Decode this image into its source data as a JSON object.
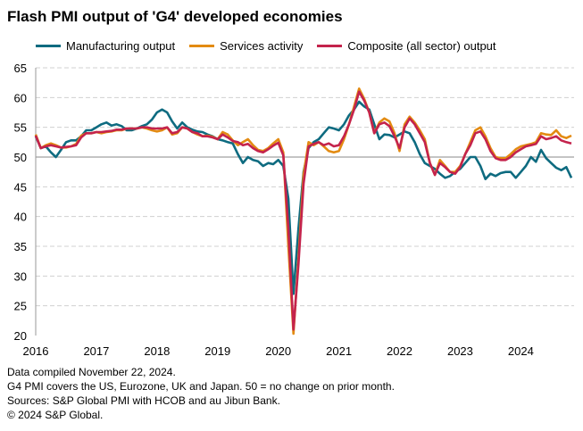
{
  "chart_data": {
    "type": "line",
    "title": "Flash PMI output of 'G4' developed economies",
    "xlabel": "",
    "ylabel": "",
    "ylim": [
      20,
      65
    ],
    "yticks": [
      20,
      25,
      30,
      35,
      40,
      45,
      50,
      55,
      60,
      65
    ],
    "xticks": [
      "2016",
      "2017",
      "2018",
      "2019",
      "2020",
      "2021",
      "2022",
      "2023",
      "2024"
    ],
    "start": "2016-01",
    "end": "2024-11",
    "reference_line": 50,
    "grid": "dashed horizontal",
    "legend_position": "top",
    "series": [
      {
        "name": "Manufacturing output",
        "color": "#0e6b80",
        "values": [
          53.5,
          51.5,
          51.8,
          50.8,
          50.0,
          51.2,
          52.5,
          52.8,
          52.8,
          53.5,
          54.5,
          54.5,
          55.0,
          55.5,
          55.8,
          55.3,
          55.5,
          55.2,
          54.5,
          54.5,
          54.8,
          55.2,
          55.5,
          56.3,
          57.5,
          58.0,
          57.5,
          56.0,
          54.8,
          55.8,
          55.0,
          54.6,
          54.3,
          54.2,
          53.8,
          53.5,
          53.0,
          52.8,
          52.5,
          52.3,
          50.5,
          49.0,
          50.0,
          49.5,
          49.3,
          48.5,
          49.0,
          48.8,
          49.5,
          48.5,
          43.0,
          27.0,
          38.0,
          47.5,
          51.5,
          52.5,
          53.0,
          54.0,
          55.0,
          54.8,
          54.5,
          55.5,
          57.0,
          58.0,
          59.3,
          58.5,
          58.0,
          55.5,
          53.0,
          53.8,
          53.7,
          53.3,
          53.8,
          54.3,
          54.0,
          52.5,
          50.5,
          49.0,
          48.5,
          48.0,
          47.2,
          46.5,
          46.8,
          47.5,
          48.0,
          49.0,
          50.0,
          50.0,
          48.5,
          46.3,
          47.2,
          46.8,
          47.3,
          47.5,
          47.5,
          46.5,
          47.5,
          48.5,
          50.0,
          49.2,
          51.2,
          49.8,
          49.0,
          48.2,
          47.8,
          48.3,
          46.5
        ]
      },
      {
        "name": "Services activity",
        "color": "#e38b12",
        "values": [
          53.8,
          51.5,
          52.0,
          52.3,
          52.0,
          51.6,
          51.6,
          51.8,
          52.2,
          53.6,
          54.0,
          54.0,
          54.2,
          54.0,
          54.2,
          54.3,
          54.5,
          54.5,
          54.8,
          54.8,
          54.8,
          55.0,
          54.8,
          54.5,
          54.3,
          54.5,
          55.0,
          53.8,
          54.0,
          55.0,
          54.8,
          54.2,
          53.8,
          53.5,
          53.6,
          53.4,
          53.0,
          54.2,
          53.8,
          52.8,
          52.0,
          52.5,
          53.0,
          52.0,
          51.2,
          51.0,
          51.5,
          52.3,
          53.0,
          50.8,
          35.0,
          20.3,
          33.0,
          47.0,
          52.5,
          52.0,
          52.5,
          51.8,
          51.0,
          50.8,
          51.0,
          53.0,
          55.5,
          58.5,
          61.5,
          59.8,
          57.5,
          54.0,
          55.8,
          56.5,
          56.0,
          54.0,
          51.0,
          55.5,
          56.8,
          55.8,
          54.5,
          53.0,
          49.0,
          47.0,
          49.5,
          48.5,
          47.5,
          47.5,
          48.5,
          50.5,
          52.5,
          54.5,
          55.0,
          53.5,
          51.5,
          50.0,
          49.8,
          49.8,
          50.5,
          51.3,
          51.8,
          52.0,
          52.2,
          52.5,
          54.0,
          53.8,
          53.7,
          54.5,
          53.5,
          53.2,
          53.6
        ]
      },
      {
        "name": "Composite (all sector) output",
        "color": "#c4234c",
        "values": [
          53.6,
          51.5,
          51.8,
          52.0,
          51.8,
          51.6,
          51.7,
          51.8,
          52.0,
          53.3,
          54.0,
          54.0,
          54.2,
          54.2,
          54.3,
          54.4,
          54.6,
          54.6,
          54.8,
          54.8,
          54.8,
          55.0,
          55.0,
          54.8,
          54.8,
          54.8,
          55.0,
          54.0,
          54.2,
          55.0,
          54.8,
          54.2,
          54.0,
          53.5,
          53.5,
          53.3,
          53.0,
          53.8,
          53.3,
          52.7,
          52.5,
          52.0,
          52.2,
          51.5,
          51.0,
          50.8,
          51.3,
          51.9,
          52.4,
          50.3,
          38.0,
          21.0,
          32.0,
          45.5,
          51.8,
          52.2,
          52.5,
          52.0,
          52.3,
          51.8,
          52.0,
          53.5,
          55.5,
          58.0,
          61.0,
          59.5,
          57.5,
          54.0,
          55.5,
          55.8,
          55.2,
          53.5,
          51.5,
          55.0,
          56.5,
          55.5,
          54.0,
          52.5,
          49.0,
          47.0,
          49.0,
          48.3,
          47.5,
          47.2,
          48.3,
          50.5,
          52.0,
          54.0,
          54.3,
          53.0,
          51.0,
          49.8,
          49.5,
          49.5,
          50.0,
          50.8,
          51.3,
          51.8,
          52.0,
          52.2,
          53.5,
          53.0,
          53.2,
          53.5,
          52.8,
          52.5,
          52.3
        ]
      }
    ]
  },
  "notes": [
    "Data compiled November 22, 2024.",
    "G4 PMI covers the US, Eurozone, UK and Japan. 50 = no change on prior month.",
    "Sources: S&P Global PMI with HCOB and au Jibun Bank.",
    "© 2024 S&P Global."
  ]
}
